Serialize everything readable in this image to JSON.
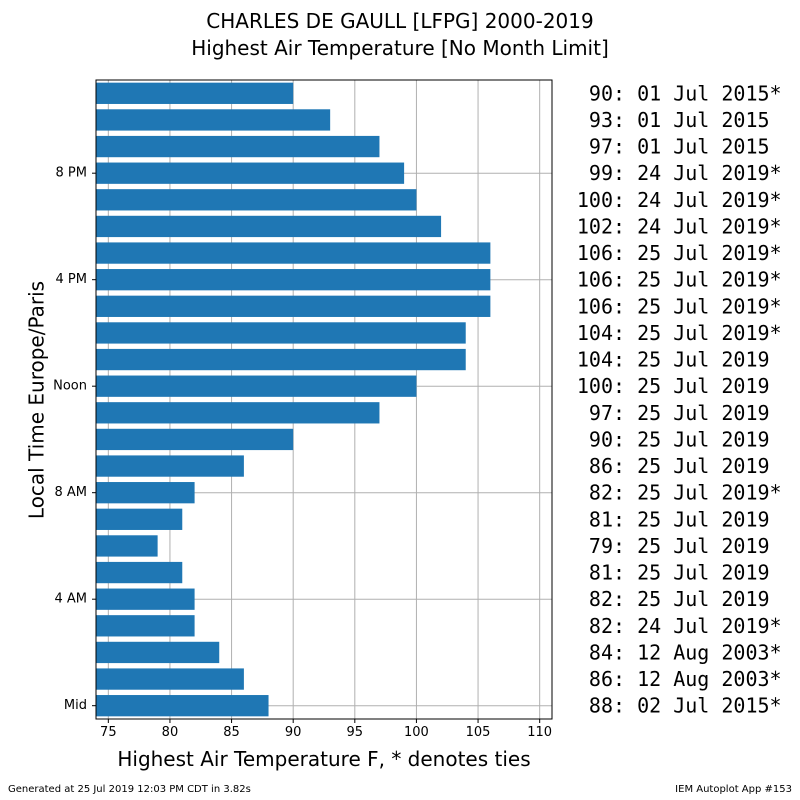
{
  "chart_data": {
    "type": "bar",
    "orientation": "horizontal",
    "title": "CHARLES DE GAULL [LFPG] 2000-2019",
    "subtitle": "Highest Air Temperature [No Month Limit]",
    "xlabel": "Highest Air Temperature F, * denotes ties",
    "ylabel": "Local Time Europe/Paris",
    "xlim": [
      74,
      111
    ],
    "xticks": [
      75,
      80,
      85,
      90,
      95,
      100,
      105,
      110
    ],
    "yticks": [
      {
        "hour": 0,
        "label": "Mid"
      },
      {
        "hour": 4,
        "label": "4 AM"
      },
      {
        "hour": 8,
        "label": "8 AM"
      },
      {
        "hour": 12,
        "label": "Noon"
      },
      {
        "hour": 16,
        "label": "4 PM"
      },
      {
        "hour": 20,
        "label": "8 PM"
      }
    ],
    "grid": true,
    "bar_color": "#1f77b4",
    "hours": [
      0,
      1,
      2,
      3,
      4,
      5,
      6,
      7,
      8,
      9,
      10,
      11,
      12,
      13,
      14,
      15,
      16,
      17,
      18,
      19,
      20,
      21,
      22,
      23
    ],
    "values": [
      88,
      86,
      84,
      82,
      82,
      81,
      79,
      81,
      82,
      86,
      90,
      97,
      100,
      104,
      104,
      106,
      106,
      106,
      102,
      100,
      99,
      97,
      93,
      90
    ],
    "annotations": [
      "88: 02 Jul 2015*",
      "86: 12 Aug 2003*",
      "84: 12 Aug 2003*",
      "82: 24 Jul 2019*",
      "82: 25 Jul 2019",
      "81: 25 Jul 2019",
      "79: 25 Jul 2019",
      "81: 25 Jul 2019",
      "82: 25 Jul 2019*",
      "86: 25 Jul 2019",
      "90: 25 Jul 2019",
      "97: 25 Jul 2019",
      "100: 25 Jul 2019",
      "104: 25 Jul 2019",
      "104: 25 Jul 2019*",
      "106: 25 Jul 2019*",
      "106: 25 Jul 2019*",
      "106: 25 Jul 2019*",
      "102: 24 Jul 2019*",
      "100: 24 Jul 2019*",
      "99: 24 Jul 2019*",
      "97: 01 Jul 2015",
      "93: 01 Jul 2015",
      "90: 01 Jul 2015*"
    ]
  },
  "footer": {
    "left": "Generated at 25 Jul 2019 12:03 PM CDT in 3.82s",
    "right": "IEM Autoplot App #153"
  }
}
